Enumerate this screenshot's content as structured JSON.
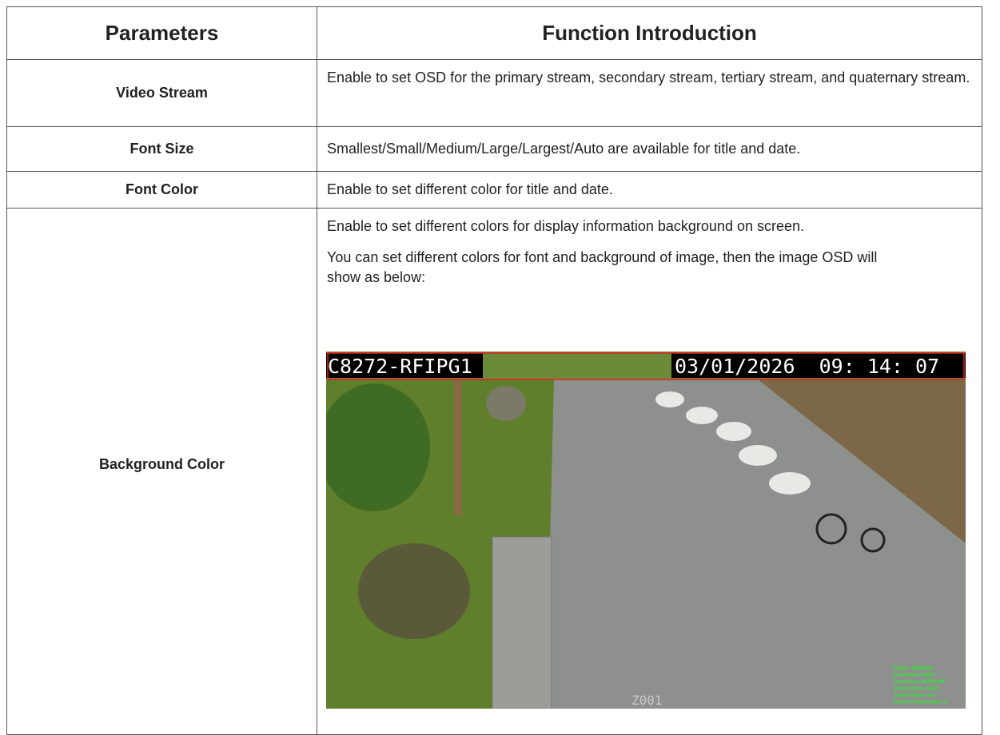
{
  "table": {
    "header": [
      "Parameters",
      "Function Introduction"
    ],
    "rows": [
      {
        "parameter": "Video Stream",
        "description": [
          "Enable to set OSD for the primary stream, secondary stream, tertiary stream, and quaternary stream."
        ]
      },
      {
        "parameter": "Font Size",
        "description": [
          "Smallest/Small/Medium/Large/Largest/Auto are available for title and date."
        ]
      },
      {
        "parameter": "Font Color",
        "description": [
          "Enable to set different color for title and date."
        ]
      },
      {
        "parameter": "Background Color",
        "description": [
          "Enable to set different colors for display information background on screen.",
          "You can set different colors for font and background of image, then the image OSD will show as below:"
        ]
      }
    ]
  },
  "osd_image": {
    "title": "C8272-RFIPG1",
    "datetime": "03/01/2026  09: 14: 07",
    "area": "Z001",
    "stats": [
      "Bitrate: 5880kbps",
      "Frame Rate: 25fps",
      "Resolution: 3840*2160",
      "Video Codec: H.264",
      "Smart Stream: On",
      "Current Connections: 2"
    ]
  }
}
